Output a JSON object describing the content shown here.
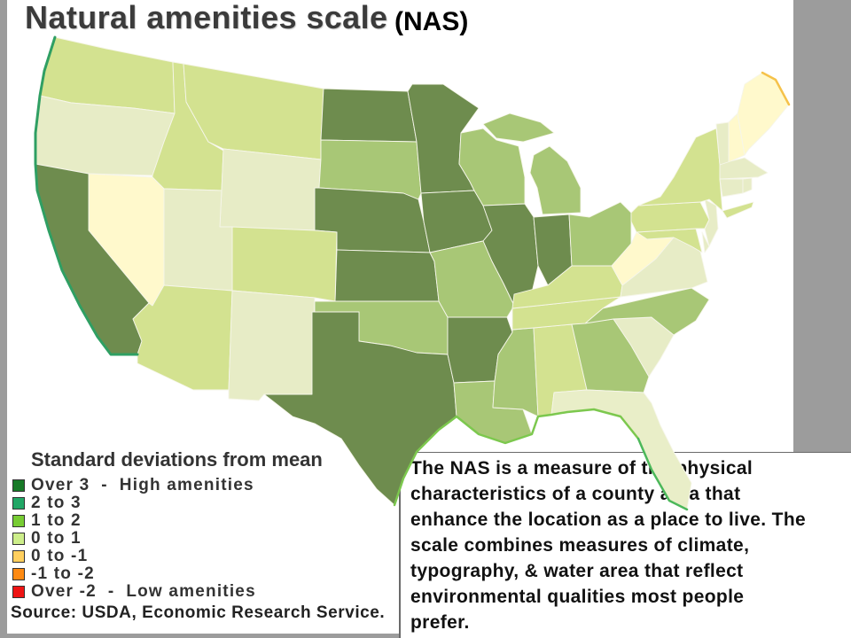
{
  "title": "Natural amenities scale",
  "title_suffix": "(NAS)",
  "legend": {
    "heading": "Standard deviations from mean",
    "items": [
      {
        "label": "Over 3  -  High amenities",
        "color": "#177a27"
      },
      {
        "label": "2 to 3",
        "color": "#21a766"
      },
      {
        "label": "1 to 2",
        "color": "#77cc33"
      },
      {
        "label": "0 to 1",
        "color": "#cdee8a"
      },
      {
        "label": "0 to -1",
        "color": "#ffcf5e"
      },
      {
        "label": "-1 to -2",
        "color": "#ff8a12"
      },
      {
        "label": "Over -2  -  Low amenities",
        "color": "#ee1414"
      }
    ]
  },
  "source": "Source: USDA, Economic Research Service.",
  "info_box": {
    "lines": [
      "The NAS is a measure of the physical",
      "characteristics of a county area that",
      "enhance the location as a place to live. The",
      "scale combines measures of climate,",
      "typography, & water area that reflect",
      "environmental qualities most people",
      "prefer."
    ]
  },
  "map": {
    "region_colors": {
      "WA": "#d3e290",
      "OR": "#e7ecc6",
      "ID": "#d3e290",
      "MT": "#d3e290",
      "WY": "#e7ecc6",
      "ND": "#6e8c4e",
      "SD": "#a8c776",
      "NE": "#6e8c4e",
      "KS": "#6e8c4e",
      "OK": "#a8c776",
      "TX": "#6e8c4e",
      "NM": "#e7ecc6",
      "AZ": "#d3e290",
      "CO": "#d3e290",
      "UT": "#e7ecc6",
      "NV": "#fff9cc",
      "CA": "#6e8c4e",
      "MN": "#6e8c4e",
      "IA": "#6e8c4e",
      "WI": "#a8c776",
      "MIU": "#a8c776",
      "MI": "#a8c776",
      "IL": "#6e8c4e",
      "IN": "#6e8c4e",
      "OH": "#a8c776",
      "MO": "#a8c776",
      "AR": "#6e8c4e",
      "LA": "#a8c776",
      "MS": "#a8c776",
      "AL": "#d3e290",
      "GA": "#a8c776",
      "FL": "#e9eec8",
      "SC": "#e7ecc6",
      "NC": "#a8c776",
      "TN": "#d3e290",
      "KY": "#d3e290",
      "VA": "#e7ecc6",
      "WV": "#fff9cc",
      "MD": "#d3e290",
      "DE": "#e7ecc6",
      "PA": "#d3e290",
      "NJ": "#e7ecc6",
      "NY": "#d3e290",
      "NYLI": "#d3e290",
      "VT": "#e7ecc6",
      "NH": "#fff9cc",
      "ME": "#fff9cc",
      "MA": "#e7ecc6",
      "CT": "#e7ecc6",
      "RI": "#e7ecc6"
    },
    "coast_colors": {
      "pacific": "#2f9f63",
      "gulf": "#7cc84e",
      "florida": "#4cb85a",
      "maine": "#f5c24a"
    }
  }
}
